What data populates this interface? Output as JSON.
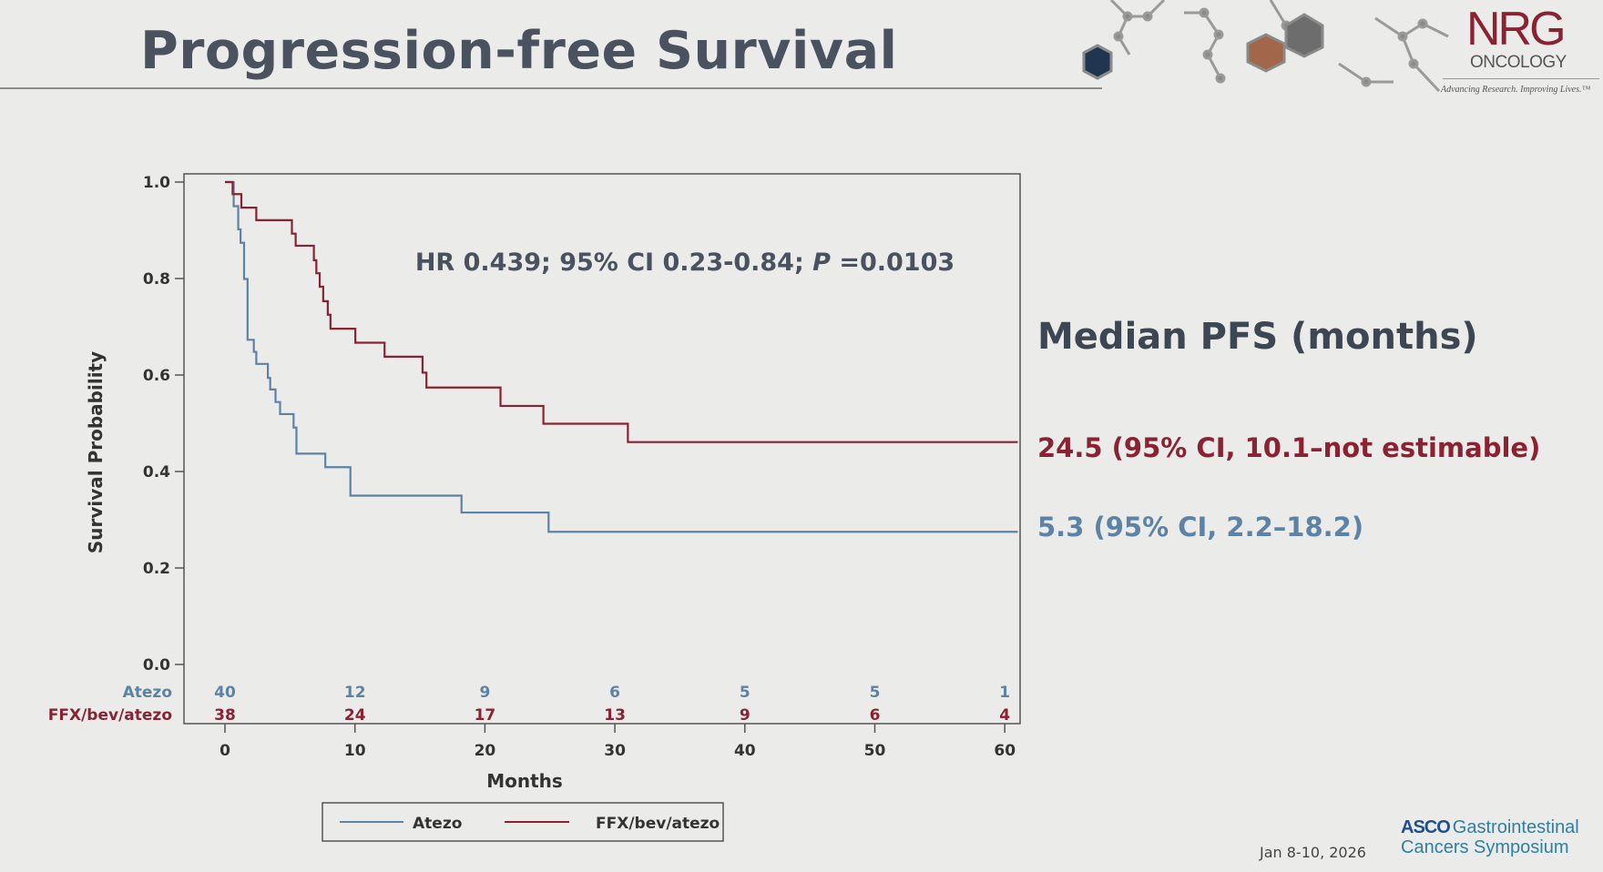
{
  "header": {
    "title": "Progression-free Survival"
  },
  "logo": {
    "brand": "NRG",
    "sub": "ONCOLOGY",
    "tagline": "Advancing Research. Improving Lives.™"
  },
  "median": {
    "title": "Median PFS (months)",
    "ffx": "24.5 (95% CI, 10.1–not estimable)",
    "atezo": "5.3 (95% CI, 2.2–18.2)"
  },
  "footer": {
    "date": "Jan 8-10, 2026",
    "asco_bold": "ASCO",
    "asco_line1": "Gastrointestinal",
    "asco_line2": "Cancers Symposium"
  },
  "colors": {
    "atezo": "#5c82a6",
    "ffx": "#8b2232",
    "text": "#4a5260"
  },
  "chart_data": {
    "type": "line",
    "step": true,
    "xlabel": "Months",
    "ylabel": "Survival Probability",
    "xlim": [
      0,
      61
    ],
    "ylim": [
      0,
      1.0
    ],
    "xticks": [
      0,
      10,
      20,
      30,
      40,
      50,
      60
    ],
    "yticks": [
      "0.0",
      "0.2",
      "0.4",
      "0.6",
      "0.8",
      "1.0"
    ],
    "annotation": {
      "pre": "HR 0.439; 95% CI 0.23-0.84; ",
      "p": "P",
      "post": " =0.0103"
    },
    "legend": {
      "placement": "bottom-center",
      "items": [
        "Atezo",
        "FFX/bev/atezo"
      ]
    },
    "series": [
      {
        "name": "Atezo",
        "color": "#5c82a6",
        "x": [
          0,
          0.67,
          1.02,
          1.2,
          1.47,
          1.74,
          2.22,
          2.41,
          3.3,
          3.48,
          3.89,
          4.24,
          5.28,
          5.5,
          7.72,
          9.65,
          18.2,
          24.9,
          61
        ],
        "y": [
          1.0,
          0.95,
          0.902,
          0.874,
          0.799,
          0.673,
          0.648,
          0.623,
          0.594,
          0.57,
          0.544,
          0.519,
          0.491,
          0.437,
          0.409,
          0.35,
          0.315,
          0.275,
          0.275
        ]
      },
      {
        "name": "FFX/bev/atezo",
        "color": "#8b2232",
        "x": [
          0,
          0.59,
          1.26,
          2.41,
          5.15,
          5.44,
          6.84,
          7.03,
          7.29,
          7.56,
          7.91,
          8.12,
          10.03,
          12.28,
          15.2,
          15.5,
          21.2,
          24.5,
          31.0,
          61
        ],
        "y": [
          1.0,
          0.975,
          0.947,
          0.921,
          0.893,
          0.868,
          0.838,
          0.811,
          0.783,
          0.753,
          0.725,
          0.696,
          0.667,
          0.638,
          0.605,
          0.574,
          0.536,
          0.499,
          0.461,
          0.461
        ]
      }
    ],
    "at_risk": [
      {
        "label": "Atezo",
        "color": "#5c82a6",
        "values": [
          40,
          12,
          9,
          6,
          5,
          5,
          1
        ]
      },
      {
        "label": "FFX/bev/atezo",
        "color": "#8b2232",
        "values": [
          38,
          24,
          17,
          13,
          9,
          6,
          4
        ]
      }
    ]
  }
}
